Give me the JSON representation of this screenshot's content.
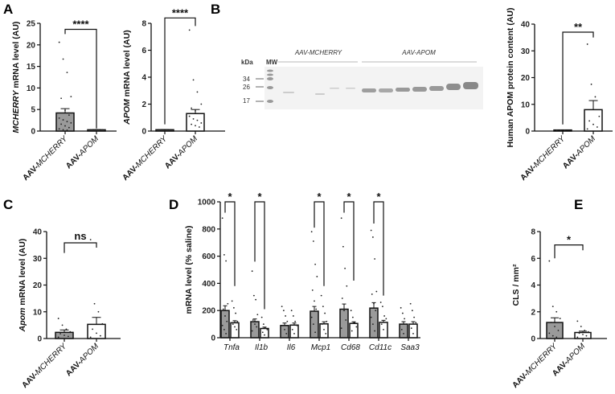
{
  "panel_letters": [
    "A",
    "B",
    "C",
    "D",
    "E"
  ],
  "colors": {
    "gray_bar": "#9a9a9a",
    "white_bar": "#ffffff",
    "stroke": "#111111"
  },
  "blot": {
    "kda_label": "kDa",
    "mw_label": "MW",
    "markers": [
      "34",
      "26",
      "17"
    ],
    "group_labels": [
      "AAV-MCHERRY",
      "AAV-APOM"
    ]
  },
  "chart_data": [
    {
      "id": "A1",
      "type": "bar",
      "ylabel_italic": "MCHERRY",
      "ylabel_rest": " mRNA level (AU)",
      "ylim": [
        0,
        25
      ],
      "yticks": [
        "0",
        "5",
        "10",
        "15",
        "20",
        "25"
      ],
      "ytick_values": [
        0,
        5,
        10,
        15,
        20,
        25
      ],
      "categories": [
        {
          "prefix": "AAV-",
          "gene": "MCHERRY"
        },
        {
          "prefix": "AAV-",
          "gene": "APOM"
        }
      ],
      "values": [
        4.2,
        0.3
      ],
      "sem": [
        1.0,
        0.05
      ],
      "fills": [
        "gray",
        "white"
      ],
      "points": [
        [
          20.6,
          16.7,
          13.6,
          8.0,
          7.6,
          4.8,
          3.7,
          3.0,
          2.6,
          2.2,
          1.9,
          1.6,
          1.2,
          0.8,
          0.5,
          0.3,
          0.2
        ],
        [
          0.3,
          0.3,
          0.3,
          0.3,
          0.3,
          0.3
        ]
      ],
      "significance": [
        {
          "label": "****",
          "level": 23.6,
          "left_end": 22.5,
          "right_end": 0.6,
          "from": 0,
          "to": 1
        }
      ]
    },
    {
      "id": "A2",
      "type": "bar",
      "ylabel_italic": "APOM",
      "ylabel_rest": " mRNA level (AU)",
      "ylim": [
        0,
        8
      ],
      "yticks": [
        "0",
        "2",
        "4",
        "6",
        "8"
      ],
      "ytick_values": [
        0,
        2,
        4,
        6,
        8
      ],
      "categories": [
        {
          "prefix": "AAV-",
          "gene": "MCHERRY"
        },
        {
          "prefix": "AAV-",
          "gene": "APOM"
        }
      ],
      "values": [
        0.1,
        1.3
      ],
      "sem": [
        0.02,
        0.3
      ],
      "fills": [
        "gray",
        "white"
      ],
      "points": [
        [
          0.1,
          0.1,
          0.1,
          0.1,
          0.1
        ],
        [
          7.5,
          3.8,
          2.9,
          2.0,
          1.7,
          1.5,
          1.3,
          1.1,
          0.9,
          0.8,
          0.6,
          0.5,
          0.4,
          0.3
        ]
      ],
      "significance": [
        {
          "label": "****",
          "level": 8.4,
          "left_end": 0.5,
          "right_end": 7.8,
          "from": 0,
          "to": 1
        }
      ]
    },
    {
      "id": "B",
      "type": "bar",
      "ylabel_italic": "",
      "ylabel_rest": "Human APOM protein content (AU)",
      "ylim": [
        0,
        40
      ],
      "yticks": [
        "0",
        "10",
        "20",
        "30",
        "40"
      ],
      "ytick_values": [
        0,
        10,
        20,
        30,
        40
      ],
      "categories": [
        {
          "prefix": "AAV-",
          "gene": "MCHERRY"
        },
        {
          "prefix": "AAV-",
          "gene": "APOM"
        }
      ],
      "values": [
        0.4,
        8.0
      ],
      "sem": [
        0.05,
        3.4
      ],
      "fills": [
        "gray",
        "white"
      ],
      "points": [
        [
          0.3,
          0.3,
          0.3
        ],
        [
          32.5,
          17.5,
          12.8,
          5.5,
          3.8,
          2.5,
          1.5,
          0.8
        ]
      ],
      "significance": [
        {
          "label": "**",
          "level": 37,
          "left_end": 2.5,
          "right_end": 35,
          "from": 0,
          "to": 1
        }
      ]
    },
    {
      "id": "C",
      "type": "bar",
      "ylabel_italic": "Apom",
      "ylabel_rest": " mRNA level (AU)",
      "ylim": [
        0,
        40
      ],
      "yticks": [
        "0",
        "10",
        "20",
        "30",
        "40"
      ],
      "ytick_values": [
        0,
        10,
        20,
        30,
        40
      ],
      "categories": [
        {
          "prefix": "AAV-",
          "gene": "MCHERRY"
        },
        {
          "prefix": "AAV-",
          "gene": "APOM"
        }
      ],
      "values": [
        2.3,
        5.3
      ],
      "sem": [
        0.9,
        2.6
      ],
      "fills": [
        "gray",
        "white"
      ],
      "points": [
        [
          7.5,
          5.0,
          3.5,
          2.5,
          1.8,
          1.2,
          0.8,
          0.5
        ],
        [
          37,
          13,
          10,
          5.5,
          3.5,
          2.0,
          1.0,
          0.5
        ]
      ],
      "significance": [
        {
          "label": "ns",
          "level": 35.8,
          "left_end": 32,
          "right_end": 34,
          "from": 0,
          "to": 1
        }
      ]
    },
    {
      "id": "D",
      "type": "grouped-bar",
      "ylabel_italic": "",
      "ylabel_rest": "mRNA level (% saline)",
      "ylim": [
        0,
        1000
      ],
      "yticks": [
        "0",
        "200",
        "400",
        "600",
        "800",
        "1000"
      ],
      "ytick_values": [
        0,
        200,
        400,
        600,
        800,
        1000
      ],
      "categories": [
        "Tnfa",
        "Il1b",
        "Il6",
        "Mcp1",
        "Cd68",
        "Cd11c",
        "Saa3"
      ],
      "series": [
        {
          "name": "AAV-MCHERRY",
          "fill": "gray",
          "values": [
            200,
            118,
            90,
            195,
            210,
            218,
            100
          ],
          "sem": [
            35,
            20,
            18,
            35,
            38,
            40,
            18
          ]
        },
        {
          "name": "AAV-APOM",
          "fill": "white",
          "values": [
            110,
            68,
            93,
            102,
            105,
            113,
            100
          ],
          "sem": [
            15,
            10,
            15,
            15,
            12,
            15,
            18
          ]
        }
      ],
      "points": [
        [
          [
            880,
            610,
            565,
            250,
            210,
            160,
            120,
            90,
            60,
            30
          ],
          [
            270,
            220,
            180,
            120,
            100,
            80,
            60
          ]
        ],
        [
          [
            490,
            310,
            280,
            170,
            130,
            100,
            80,
            50
          ],
          [
            150,
            100,
            70,
            60,
            40,
            20
          ]
        ],
        [
          [
            230,
            200,
            160,
            120,
            90,
            60,
            30
          ],
          [
            200,
            160,
            120,
            90,
            60,
            30
          ]
        ],
        [
          [
            780,
            710,
            540,
            450,
            350,
            270,
            210,
            150,
            100,
            40
          ],
          [
            310,
            230,
            180,
            120,
            100,
            60,
            30
          ]
        ],
        [
          [
            880,
            670,
            510,
            380,
            290,
            200,
            130,
            70
          ],
          [
            200,
            150,
            110,
            80,
            50
          ]
        ],
        [
          [
            790,
            740,
            580,
            340,
            320,
            250,
            200,
            150,
            100,
            50
          ],
          [
            260,
            230,
            160,
            140,
            100,
            60
          ]
        ],
        [
          [
            220,
            180,
            140,
            100,
            60,
            30
          ],
          [
            250,
            200,
            150,
            110,
            70,
            30
          ]
        ]
      ],
      "significance": [
        {
          "label": "*",
          "group": 0,
          "level": 1000,
          "left_end": 920,
          "right_end": 380
        },
        {
          "label": "*",
          "group": 1,
          "level": 1000,
          "left_end": 560,
          "right_end": 210
        },
        {
          "label": "*",
          "group": 3,
          "level": 1000,
          "left_end": 810,
          "right_end": 380
        },
        {
          "label": "*",
          "group": 4,
          "level": 1000,
          "left_end": 920,
          "right_end": 420
        },
        {
          "label": "*",
          "group": 5,
          "level": 1000,
          "left_end": 840,
          "right_end": 310
        }
      ]
    },
    {
      "id": "E",
      "type": "bar",
      "ylabel_italic": "",
      "ylabel_rest": "CLS / mm²",
      "ylim": [
        0,
        8
      ],
      "yticks": [
        "0",
        "2",
        "4",
        "6",
        "8"
      ],
      "ytick_values": [
        0,
        2,
        4,
        6,
        8
      ],
      "categories": [
        {
          "prefix": "AAV-",
          "gene": "MCHERRY"
        },
        {
          "prefix": "AAV-",
          "gene": "APOM"
        }
      ],
      "values": [
        1.2,
        0.45
      ],
      "sem": [
        0.35,
        0.1
      ],
      "fills": [
        "gray",
        "white"
      ],
      "points": [
        [
          5.8,
          2.4,
          2.0,
          1.5,
          1.2,
          0.9,
          0.6,
          0.4,
          0.2,
          0.1
        ],
        [
          1.3,
          0.9,
          0.6,
          0.5,
          0.4,
          0.3,
          0.2,
          0.1
        ]
      ],
      "significance": [
        {
          "label": "*",
          "level": 7.0,
          "left_end": 6.0,
          "right_end": 6.6,
          "from": 0,
          "to": 1
        }
      ]
    }
  ]
}
